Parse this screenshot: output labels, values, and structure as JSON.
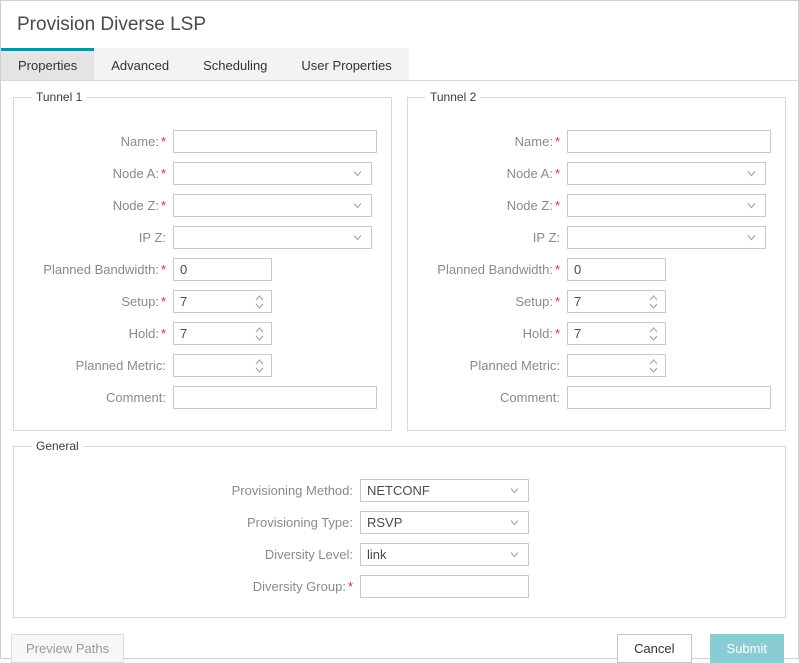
{
  "title": "Provision Diverse LSP",
  "tabs": [
    {
      "label": "Properties",
      "active": true
    },
    {
      "label": "Advanced",
      "active": false
    },
    {
      "label": "Scheduling",
      "active": false
    },
    {
      "label": "User Properties",
      "active": false
    }
  ],
  "sections": {
    "tunnel1": {
      "legend": "Tunnel 1",
      "fields": [
        {
          "id": "name",
          "label": "Name:",
          "required": true,
          "type": "text",
          "value": "",
          "size": "wide"
        },
        {
          "id": "node-a",
          "label": "Node A:",
          "required": true,
          "type": "select",
          "value": "",
          "size": "wide"
        },
        {
          "id": "node-z",
          "label": "Node Z:",
          "required": true,
          "type": "select",
          "value": "",
          "size": "wide"
        },
        {
          "id": "ip-z",
          "label": "IP Z:",
          "required": false,
          "type": "select",
          "value": "",
          "size": "wide"
        },
        {
          "id": "planned-bandwidth",
          "label": "Planned Bandwidth:",
          "required": true,
          "type": "text",
          "value": "0",
          "size": "medium"
        },
        {
          "id": "setup",
          "label": "Setup:",
          "required": true,
          "type": "spinner",
          "value": "7",
          "size": "medium"
        },
        {
          "id": "hold",
          "label": "Hold:",
          "required": true,
          "type": "spinner",
          "value": "7",
          "size": "medium"
        },
        {
          "id": "planned-metric",
          "label": "Planned Metric:",
          "required": false,
          "type": "spinner",
          "value": "",
          "size": "medium"
        },
        {
          "id": "comment",
          "label": "Comment:",
          "required": false,
          "type": "text",
          "value": "",
          "size": "wide"
        }
      ]
    },
    "tunnel2": {
      "legend": "Tunnel 2",
      "fields": [
        {
          "id": "name",
          "label": "Name:",
          "required": true,
          "type": "text",
          "value": "",
          "size": "wide"
        },
        {
          "id": "node-a",
          "label": "Node A:",
          "required": true,
          "type": "select",
          "value": "",
          "size": "wide"
        },
        {
          "id": "node-z",
          "label": "Node Z:",
          "required": true,
          "type": "select",
          "value": "",
          "size": "wide"
        },
        {
          "id": "ip-z",
          "label": "IP Z:",
          "required": false,
          "type": "select",
          "value": "",
          "size": "wide"
        },
        {
          "id": "planned-bandwidth",
          "label": "Planned Bandwidth:",
          "required": true,
          "type": "text",
          "value": "0",
          "size": "medium"
        },
        {
          "id": "setup",
          "label": "Setup:",
          "required": true,
          "type": "spinner",
          "value": "7",
          "size": "medium"
        },
        {
          "id": "hold",
          "label": "Hold:",
          "required": true,
          "type": "spinner",
          "value": "7",
          "size": "medium"
        },
        {
          "id": "planned-metric",
          "label": "Planned Metric:",
          "required": false,
          "type": "spinner",
          "value": "",
          "size": "medium"
        },
        {
          "id": "comment",
          "label": "Comment:",
          "required": false,
          "type": "text",
          "value": "",
          "size": "wide"
        }
      ]
    },
    "general": {
      "legend": "General",
      "fields": [
        {
          "id": "provisioning-method",
          "label": "Provisioning Method:",
          "required": false,
          "type": "select",
          "value": "NETCONF",
          "size": "gen"
        },
        {
          "id": "provisioning-type",
          "label": "Provisioning Type:",
          "required": false,
          "type": "select",
          "value": "RSVP",
          "size": "gen"
        },
        {
          "id": "diversity-level",
          "label": "Diversity Level:",
          "required": false,
          "type": "select",
          "value": "link",
          "size": "gen"
        },
        {
          "id": "diversity-group",
          "label": "Diversity Group:",
          "required": true,
          "type": "text",
          "value": "",
          "size": "gen"
        }
      ]
    }
  },
  "footer": {
    "preview_paths": "Preview Paths",
    "cancel": "Cancel",
    "submit": "Submit"
  },
  "colors": {
    "accent": "#0a96a1",
    "submit_bg": "#8accd4",
    "required": "#d0342c"
  }
}
